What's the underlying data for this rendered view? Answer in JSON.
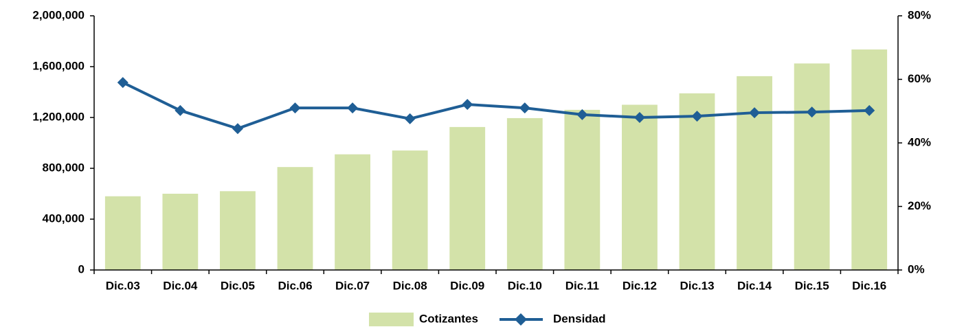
{
  "chart_data": {
    "type": "bar-line",
    "categories": [
      "Dic.03",
      "Dic.04",
      "Dic.05",
      "Dic.06",
      "Dic.07",
      "Dic.08",
      "Dic.09",
      "Dic.10",
      "Dic.11",
      "Dic.12",
      "Dic.13",
      "Dic.14",
      "Dic.15",
      "Dic.16"
    ],
    "series": [
      {
        "name": "Cotizantes",
        "type": "bar",
        "color": "#d3e2a9",
        "axis": "y",
        "values": [
          580000,
          600000,
          620000,
          810000,
          910000,
          940000,
          1125000,
          1195000,
          1260000,
          1300000,
          1390000,
          1525000,
          1625000,
          1735000
        ]
      },
      {
        "name": "Densidad",
        "type": "line",
        "color": "#1f5e95",
        "axis": "y2",
        "values": [
          59.0,
          50.2,
          44.5,
          51.0,
          51.0,
          47.6,
          52.1,
          51.0,
          48.9,
          48.0,
          48.4,
          49.5,
          49.7,
          50.2
        ]
      }
    ],
    "ylim": [
      0,
      2000000
    ],
    "yticks": [
      0,
      {
        "value": 400000,
        "label": "400,000"
      },
      {
        "value": 800000,
        "label": "800,000"
      },
      {
        "value": 1200000,
        "label": "1,200,000"
      },
      {
        "value": 1600000,
        "label": "1,600,000"
      },
      {
        "value": 2000000,
        "label": "2,000,000"
      }
    ],
    "y2lim": [
      0,
      80
    ],
    "y2ticks": [
      {
        "value": 0,
        "label": "0%"
      },
      {
        "value": 20,
        "label": "20%"
      },
      {
        "value": 40,
        "label": "40%"
      },
      {
        "value": 60,
        "label": "60%"
      },
      {
        "value": 80,
        "label": "80%"
      }
    ],
    "grid": false,
    "legend": "bottom"
  }
}
